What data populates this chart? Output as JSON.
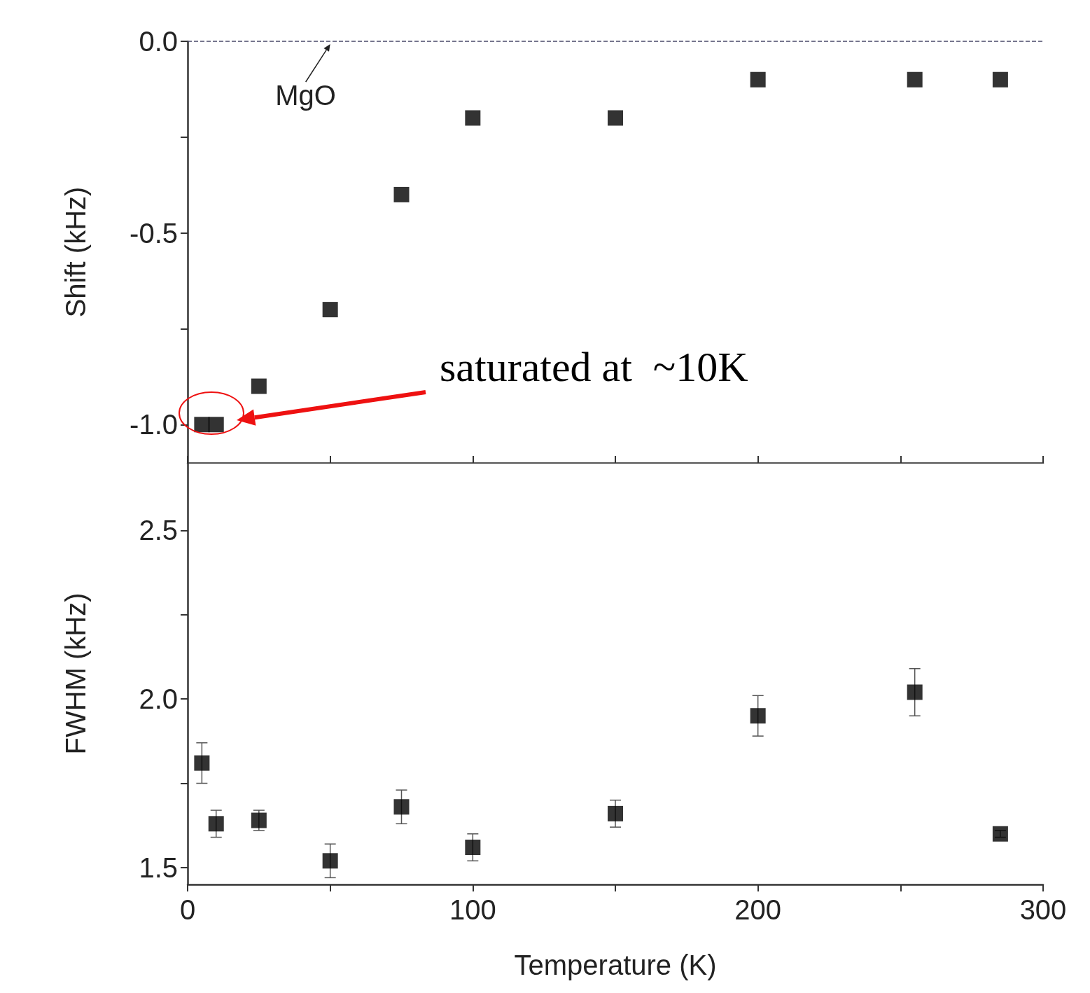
{
  "chart_data": [
    {
      "type": "scatter",
      "ylabel": "Shift (kHz)",
      "x": [
        5,
        10,
        25,
        50,
        75,
        100,
        150,
        200,
        255,
        285
      ],
      "series": [
        {
          "color": "#000000",
          "values": [
            -1.0,
            -1.0,
            -0.9,
            -0.7,
            -0.4,
            -0.2,
            -0.2,
            -0.1,
            -0.1,
            -0.1
          ]
        }
      ],
      "xlim": [
        0,
        300
      ],
      "xticks": [
        {
          "value": 0,
          "label": null
        },
        {
          "value": 50,
          "label": null
        },
        {
          "value": 100,
          "label": null
        },
        {
          "value": 150,
          "label": null
        },
        {
          "value": 200,
          "label": null
        },
        {
          "value": 250,
          "label": null
        },
        {
          "value": 300,
          "label": null
        }
      ],
      "ylim": [
        -1.1,
        0.0
      ],
      "yticks": [
        {
          "value": -1.0,
          "label": "-1.0"
        },
        {
          "value": -0.75,
          "label": null
        },
        {
          "value": -0.5,
          "label": "-0.5"
        },
        {
          "value": -0.25,
          "label": null
        },
        {
          "value": 0.0,
          "label": "0.0"
        }
      ],
      "tick_labels": "y",
      "grid": false,
      "marker": "square",
      "ref_lines": [
        {
          "axis": "y",
          "value": 0.0,
          "label": "MgO",
          "color": "#4a4a6a",
          "line_style": "dashed"
        }
      ],
      "annotations": [
        "saturated at  ~10K"
      ]
    },
    {
      "type": "scatter",
      "xlabel": "Temperature (K)",
      "ylabel": "FWHM (kHz)",
      "x": [
        5,
        10,
        25,
        50,
        75,
        100,
        150,
        200,
        255,
        285
      ],
      "series": [
        {
          "color": "#000000",
          "values": [
            1.81,
            1.63,
            1.64,
            1.52,
            1.68,
            1.56,
            1.66,
            1.95,
            2.02,
            1.6
          ],
          "errors": [
            0.06,
            0.04,
            0.03,
            0.05,
            0.05,
            0.04,
            0.04,
            0.06,
            0.07,
            0.01
          ]
        }
      ],
      "xlim": [
        0,
        300
      ],
      "xticks": [
        0,
        {
          "value": 50,
          "label": null
        },
        100,
        {
          "value": 150,
          "label": null
        },
        200,
        {
          "value": 250,
          "label": null
        },
        300
      ],
      "ylim": [
        1.45,
        2.7
      ],
      "yticks": [
        {
          "value": 1.5,
          "label": "1.5"
        },
        {
          "value": 1.75,
          "label": null
        },
        {
          "value": 2.0,
          "label": "2.0"
        },
        {
          "value": 2.25,
          "label": null
        },
        {
          "value": 2.5,
          "label": "2.5"
        }
      ],
      "grid": false,
      "marker": "square"
    }
  ]
}
